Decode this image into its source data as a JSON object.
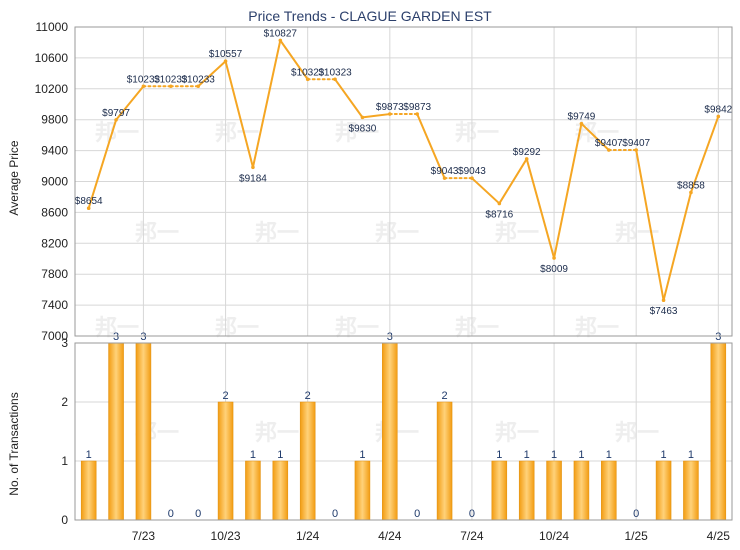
{
  "chart_data": [
    {
      "type": "line",
      "title": "Price Trends - CLAGUE GARDEN EST",
      "ylabel": "Average Price",
      "ylim": [
        7000,
        11000
      ],
      "yticks": [
        7000,
        7400,
        7800,
        8200,
        8600,
        9000,
        9400,
        9800,
        10200,
        10600,
        11000
      ],
      "grid": true,
      "color": "#f5a623",
      "series": [
        {
          "values": [
            8654,
            9797,
            10233,
            10233,
            10233,
            10557,
            9184,
            10827,
            10323,
            10323,
            9830,
            9873,
            9873,
            9043,
            9043,
            8716,
            9292,
            8009,
            9749,
            9407,
            9407,
            7463,
            8858,
            9842
          ],
          "labels": [
            "$8654",
            "$9797",
            "$10233",
            "$10233",
            "$10233",
            "$10557",
            "$9184",
            "$10827",
            "$10323",
            "$10323",
            "$9830",
            "$9873",
            "$9873",
            "$9043",
            "$9043",
            "$8716",
            "$9292",
            "$8009",
            "$9749",
            "$9407",
            "$9407",
            "$7463",
            "$8858",
            "$9842"
          ]
        }
      ]
    },
    {
      "type": "bar",
      "ylabel": "No. of Transactions",
      "ylim": [
        0,
        3
      ],
      "yticks": [
        0,
        1,
        2,
        3
      ],
      "grid": true,
      "color": "#f5a623",
      "values": [
        1,
        3,
        3,
        0,
        0,
        2,
        1,
        1,
        2,
        0,
        1,
        3,
        0,
        2,
        0,
        1,
        1,
        1,
        1,
        1,
        0,
        1,
        1,
        3
      ]
    }
  ],
  "x_axis": {
    "tick_labels": [
      "7/23",
      "10/23",
      "1/24",
      "4/24",
      "7/24",
      "10/24",
      "1/25",
      "4/25"
    ],
    "tick_indices": [
      2,
      5,
      8,
      11,
      14,
      17,
      20,
      23
    ]
  },
  "watermark": "邦一"
}
